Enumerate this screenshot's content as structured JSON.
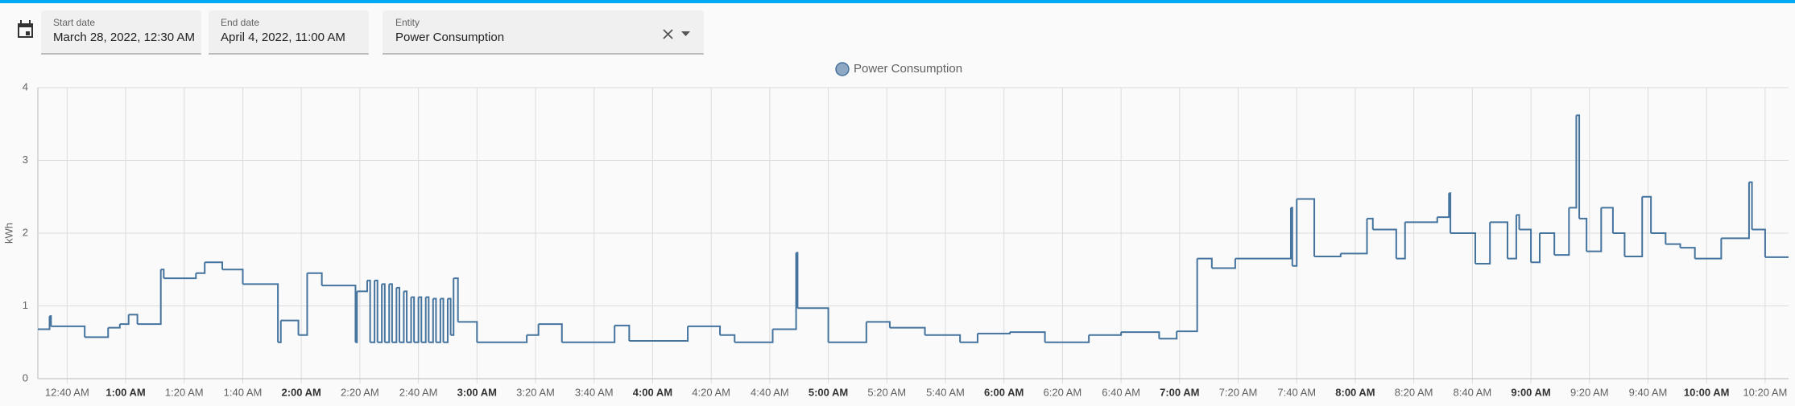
{
  "filters": {
    "start_label": "Start date",
    "start_value": "March 28, 2022, 12:30 AM",
    "end_label": "End date",
    "end_value": "April 4, 2022, 11:00 AM",
    "entity_label": "Entity",
    "entity_value": "Power Consumption"
  },
  "chart_data": {
    "type": "step",
    "y_label": "kWh",
    "grid": true,
    "xlim": [
      30,
      628
    ],
    "ylim": [
      0,
      4
    ],
    "yticks": [
      0,
      1,
      2,
      3,
      4
    ],
    "xticks": [
      {
        "value": 40,
        "label": "12:40 AM"
      },
      {
        "value": 60,
        "label": "1:00 AM"
      },
      {
        "value": 80,
        "label": "1:20 AM"
      },
      {
        "value": 100,
        "label": "1:40 AM"
      },
      {
        "value": 120,
        "label": "2:00 AM"
      },
      {
        "value": 140,
        "label": "2:20 AM"
      },
      {
        "value": 160,
        "label": "2:40 AM"
      },
      {
        "value": 180,
        "label": "3:00 AM"
      },
      {
        "value": 200,
        "label": "3:20 AM"
      },
      {
        "value": 220,
        "label": "3:40 AM"
      },
      {
        "value": 240,
        "label": "4:00 AM"
      },
      {
        "value": 260,
        "label": "4:20 AM"
      },
      {
        "value": 280,
        "label": "4:40 AM"
      },
      {
        "value": 300,
        "label": "5:00 AM"
      },
      {
        "value": 320,
        "label": "5:20 AM"
      },
      {
        "value": 340,
        "label": "5:40 AM"
      },
      {
        "value": 360,
        "label": "6:00 AM"
      },
      {
        "value": 380,
        "label": "6:20 AM"
      },
      {
        "value": 400,
        "label": "6:40 AM"
      },
      {
        "value": 420,
        "label": "7:00 AM"
      },
      {
        "value": 440,
        "label": "7:20 AM"
      },
      {
        "value": 460,
        "label": "7:40 AM"
      },
      {
        "value": 480,
        "label": "8:00 AM"
      },
      {
        "value": 500,
        "label": "8:20 AM"
      },
      {
        "value": 520,
        "label": "8:40 AM"
      },
      {
        "value": 540,
        "label": "9:00 AM"
      },
      {
        "value": 560,
        "label": "9:20 AM"
      },
      {
        "value": 580,
        "label": "9:40 AM"
      },
      {
        "value": 600,
        "label": "10:00 AM"
      },
      {
        "value": 620,
        "label": "10:20 AM"
      }
    ],
    "x": [
      30,
      34,
      34.5,
      46,
      54,
      58,
      61,
      64,
      72,
      73,
      84,
      87,
      93,
      100,
      112,
      113,
      119,
      122,
      127,
      138.5,
      139,
      142.5,
      143.5,
      145,
      146,
      147.5,
      148.5,
      150,
      151,
      152.5,
      153.5,
      155,
      156,
      157.5,
      158.5,
      160,
      161,
      162.5,
      163.5,
      165,
      166,
      167.5,
      168.5,
      170,
      171,
      172,
      173.5,
      180,
      197,
      201,
      209,
      227,
      232,
      252,
      263,
      268,
      281,
      289,
      289.5,
      300,
      313,
      321,
      333,
      345,
      351,
      362,
      374,
      389,
      400,
      413,
      419,
      426,
      431,
      439,
      458,
      458.5,
      460,
      466,
      475,
      484,
      486,
      494,
      497,
      508,
      512,
      512.5,
      521,
      526,
      532,
      535,
      536,
      540,
      543,
      548,
      553,
      555.5,
      556.5,
      559,
      564,
      568,
      572,
      578,
      581,
      586,
      591,
      596,
      605,
      614.5,
      615.5,
      620
    ],
    "series": [
      {
        "name": "Power Consumption",
        "color": "#44739e",
        "legend_fill": "#8ea8c3",
        "values": [
          0.68,
          0.86,
          0.72,
          0.57,
          0.7,
          0.75,
          0.88,
          0.75,
          1.5,
          1.38,
          1.45,
          1.6,
          1.5,
          1.3,
          0.5,
          0.8,
          0.6,
          1.45,
          1.28,
          0.5,
          1.2,
          1.35,
          0.5,
          1.35,
          0.5,
          1.3,
          0.5,
          1.3,
          0.5,
          1.25,
          0.5,
          1.2,
          0.5,
          1.12,
          0.5,
          1.12,
          0.5,
          1.12,
          0.5,
          1.1,
          0.5,
          1.1,
          0.5,
          1.1,
          0.6,
          1.38,
          0.78,
          0.5,
          0.6,
          0.75,
          0.5,
          0.73,
          0.52,
          0.72,
          0.6,
          0.5,
          0.68,
          1.73,
          0.97,
          0.5,
          0.78,
          0.7,
          0.6,
          0.5,
          0.62,
          0.64,
          0.5,
          0.6,
          0.64,
          0.55,
          0.65,
          1.65,
          1.52,
          1.65,
          2.35,
          1.55,
          2.47,
          1.68,
          1.72,
          2.2,
          2.05,
          1.65,
          2.15,
          2.22,
          2.55,
          2.0,
          1.58,
          2.15,
          1.65,
          2.25,
          2.05,
          1.6,
          2.0,
          1.7,
          2.35,
          3.62,
          2.2,
          1.75,
          2.35,
          2.0,
          1.68,
          2.5,
          2.0,
          1.85,
          1.8,
          1.65,
          1.93,
          2.7,
          2.05,
          1.67
        ]
      }
    ]
  }
}
